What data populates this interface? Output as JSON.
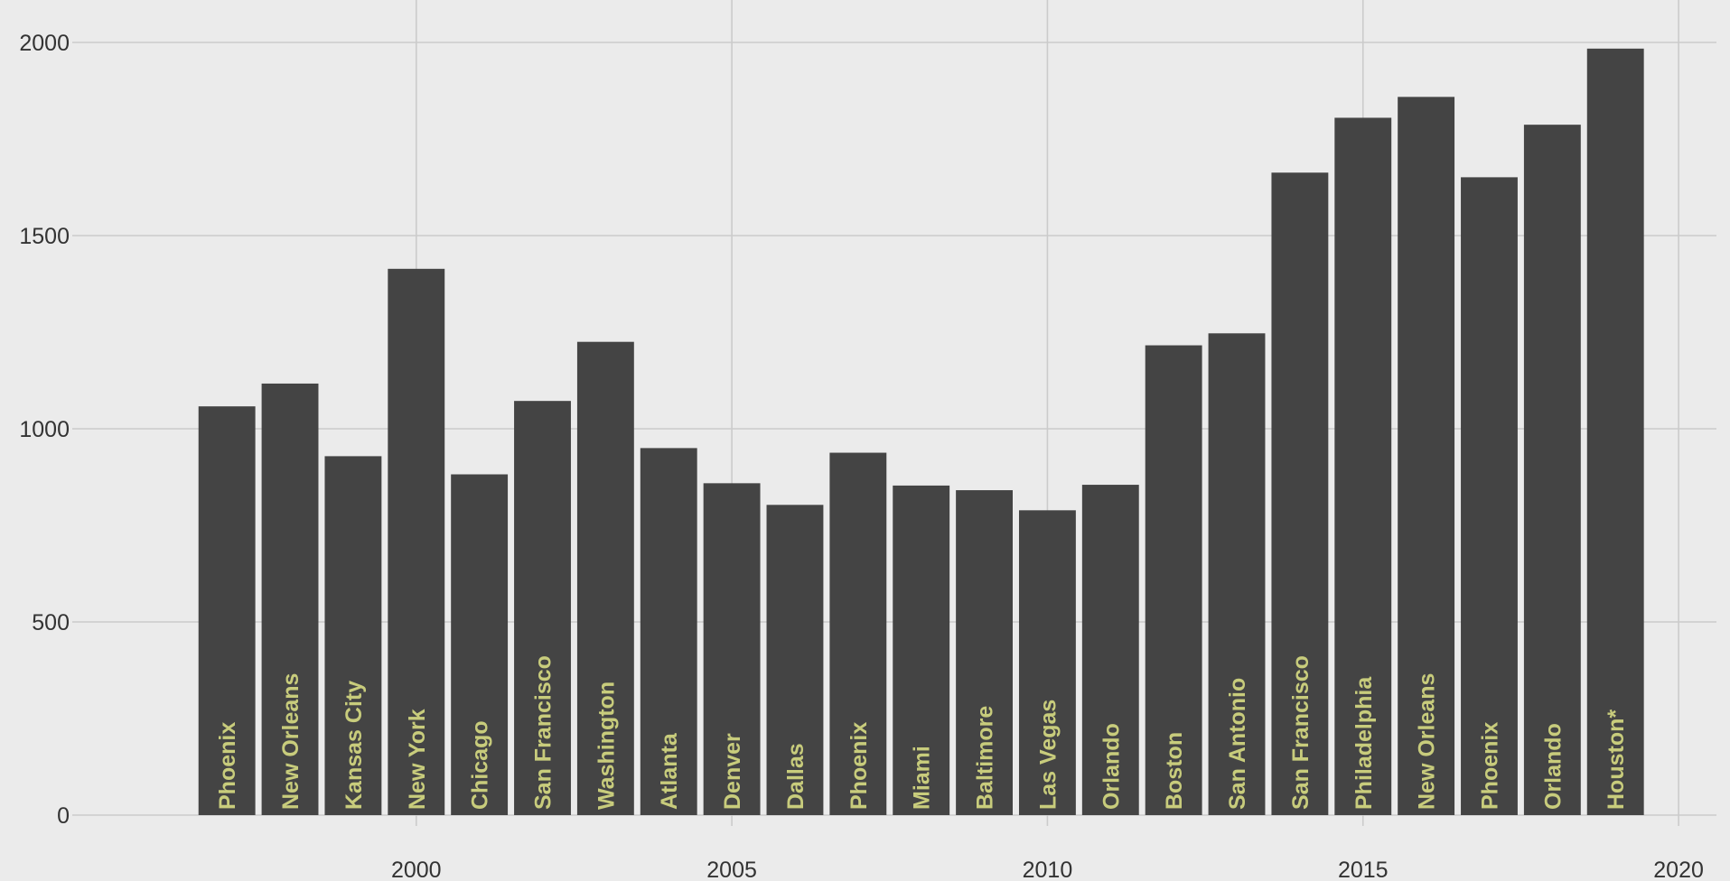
{
  "chart_data": {
    "type": "bar",
    "x": [
      1997,
      1998,
      1999,
      2000,
      2001,
      2002,
      2003,
      2004,
      2005,
      2006,
      2007,
      2008,
      2009,
      2010,
      2011,
      2012,
      2013,
      2014,
      2015,
      2016,
      2017,
      2018,
      2019
    ],
    "values": [
      1058,
      1117,
      929,
      1414,
      882,
      1072,
      1225,
      950,
      859,
      803,
      938,
      853,
      841,
      789,
      855,
      1216,
      1247,
      1663,
      1805,
      1859,
      1651,
      1787,
      1984
    ],
    "bar_labels": [
      "Phoenix",
      "New Orleans",
      "Kansas City",
      "New York",
      "Chicago",
      "San Francisco",
      "Washington",
      "Atlanta",
      "Denver",
      "Dallas",
      "Phoenix",
      "Miami",
      "Baltimore",
      "Las Vegas",
      "Orlando",
      "Boston",
      "San Antonio",
      "San Francisco",
      "Philadelphia",
      "New Orleans",
      "Phoenix",
      "Orlando",
      "Houston*"
    ],
    "x_ticks": [
      2000,
      2005,
      2010,
      2015,
      2020
    ],
    "y_ticks": [
      0,
      500,
      1000,
      1500,
      2000
    ],
    "xlim": [
      1994.55,
      2020.6
    ],
    "ylim": [
      0,
      2100
    ],
    "grid": true,
    "legend": "none",
    "title": "",
    "xlabel": "",
    "ylabel": "",
    "colors": {
      "background": "#ebebeb",
      "bar": "#444444",
      "bar_label": "#c8cc7c",
      "grid": "#cbcbcb",
      "tick_text": "#333333"
    }
  }
}
